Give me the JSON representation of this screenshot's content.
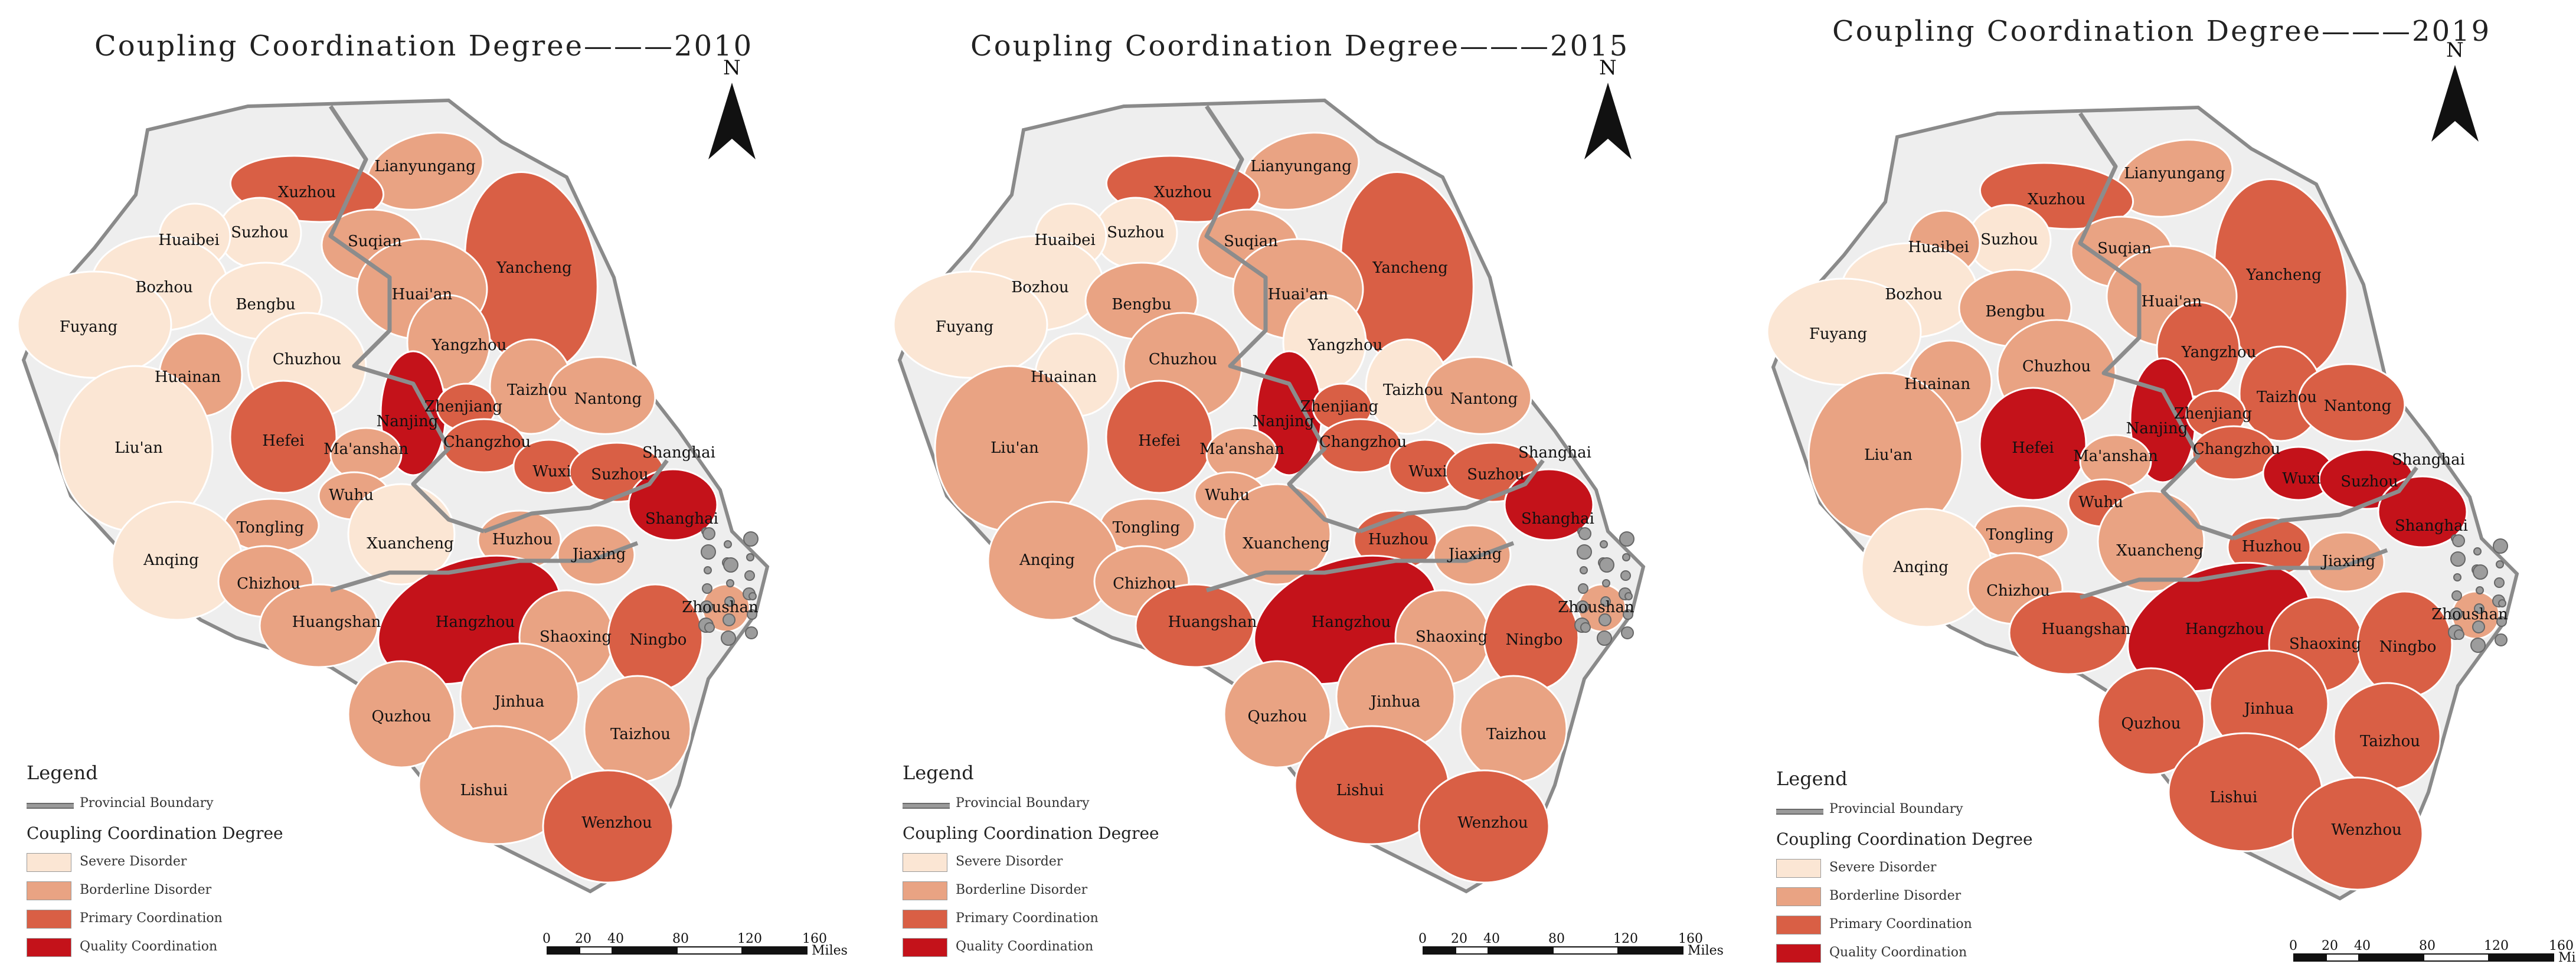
{
  "north_label": "N",
  "legend": {
    "title": "Legend",
    "boundary_label": "Provincial Boundary",
    "degree_title": "Coupling Coordination Degree",
    "classes": [
      {
        "key": "severe",
        "label": "Severe Disorder",
        "color": "#fbe6d4"
      },
      {
        "key": "borderline",
        "label": "Borderline Disorder",
        "color": "#e9a383"
      },
      {
        "key": "primary",
        "label": "Primary Coordination",
        "color": "#d95f45"
      },
      {
        "key": "quality",
        "label": "Quality Coordination",
        "color": "#c4121a"
      }
    ]
  },
  "scale": {
    "ticks": [
      "0",
      "20",
      "40",
      "80",
      "120",
      "160"
    ],
    "unit": "Miles"
  },
  "maps": [
    {
      "title": "Coupling Coordination Degree———2010",
      "cities": {
        "Lianyungang": "borderline",
        "Xuzhou": "primary",
        "Suzhou_n": "severe",
        "Huaibei": "severe",
        "Suqian": "borderline",
        "Yancheng": "primary",
        "Bozhou": "severe",
        "Bengbu": "severe",
        "Huai'an": "borderline",
        "Fuyang": "severe",
        "Huainan": "borderline",
        "Chuzhou": "severe",
        "Yangzhou": "borderline",
        "Taizhou_j": "borderline",
        "Nantong": "borderline",
        "Nanjing": "quality",
        "Zhenjiang": "primary",
        "Hefei": "primary",
        "Ma'anshan": "borderline",
        "Changzhou": "primary",
        "Wuxi": "primary",
        "Suzhou_s": "primary",
        "Shanghai": "quality",
        "Liu'an": "severe",
        "Wuhu": "borderline",
        "Tongling": "borderline",
        "Xuancheng": "severe",
        "Huzhou": "borderline",
        "Jiaxing": "borderline",
        "Anqing": "severe",
        "Chizhou": "borderline",
        "Huangshan": "borderline",
        "Hangzhou": "quality",
        "Shaoxing": "borderline",
        "Ningbo": "primary",
        "Zhoushan": "borderline",
        "Quzhou": "borderline",
        "Jinhua": "borderline",
        "Taizhou_z": "borderline",
        "Lishui": "borderline",
        "Wenzhou": "primary"
      }
    },
    {
      "title": "Coupling Coordination Degree———2015",
      "cities": {
        "Lianyungang": "borderline",
        "Xuzhou": "primary",
        "Suzhou_n": "severe",
        "Huaibei": "severe",
        "Suqian": "borderline",
        "Yancheng": "primary",
        "Bozhou": "severe",
        "Bengbu": "borderline",
        "Huai'an": "borderline",
        "Fuyang": "severe",
        "Huainan": "severe",
        "Chuzhou": "borderline",
        "Yangzhou": "severe",
        "Taizhou_j": "severe",
        "Nantong": "borderline",
        "Nanjing": "quality",
        "Zhenjiang": "primary",
        "Hefei": "primary",
        "Ma'anshan": "borderline",
        "Changzhou": "primary",
        "Wuxi": "primary",
        "Suzhou_s": "primary",
        "Shanghai": "quality",
        "Liu'an": "borderline",
        "Wuhu": "borderline",
        "Tongling": "borderline",
        "Xuancheng": "borderline",
        "Huzhou": "primary",
        "Jiaxing": "borderline",
        "Anqing": "borderline",
        "Chizhou": "borderline",
        "Huangshan": "primary",
        "Hangzhou": "quality",
        "Shaoxing": "borderline",
        "Ningbo": "primary",
        "Zhoushan": "borderline",
        "Quzhou": "borderline",
        "Jinhua": "borderline",
        "Taizhou_z": "borderline",
        "Lishui": "primary",
        "Wenzhou": "primary"
      }
    },
    {
      "title": "Coupling Coordination Degree———2019",
      "cities": {
        "Lianyungang": "borderline",
        "Xuzhou": "primary",
        "Suzhou_n": "severe",
        "Huaibei": "borderline",
        "Suqian": "borderline",
        "Yancheng": "primary",
        "Bozhou": "severe",
        "Bengbu": "borderline",
        "Huai'an": "borderline",
        "Fuyang": "severe",
        "Huainan": "borderline",
        "Chuzhou": "borderline",
        "Yangzhou": "primary",
        "Taizhou_j": "primary",
        "Nantong": "primary",
        "Nanjing": "quality",
        "Zhenjiang": "primary",
        "Hefei": "quality",
        "Ma'anshan": "borderline",
        "Changzhou": "primary",
        "Wuxi": "quality",
        "Suzhou_s": "quality",
        "Shanghai": "quality",
        "Liu'an": "borderline",
        "Wuhu": "primary",
        "Tongling": "borderline",
        "Xuancheng": "borderline",
        "Huzhou": "primary",
        "Jiaxing": "borderline",
        "Anqing": "severe",
        "Chizhou": "borderline",
        "Huangshan": "primary",
        "Hangzhou": "quality",
        "Shaoxing": "primary",
        "Ningbo": "primary",
        "Zhoushan": "borderline",
        "Quzhou": "primary",
        "Jinhua": "primary",
        "Taizhou_z": "primary",
        "Lishui": "primary",
        "Wenzhou": "primary"
      }
    }
  ],
  "city_labels": {
    "Lianyungang": "Lianyungang",
    "Xuzhou": "Xuzhou",
    "Suzhou_n": "Suzhou",
    "Huaibei": "Huaibei",
    "Suqian": "Suqian",
    "Yancheng": "Yancheng",
    "Bozhou": "Bozhou",
    "Bengbu": "Bengbu",
    "Huai'an": "Huai'an",
    "Fuyang": "Fuyang",
    "Huainan": "Huainan",
    "Chuzhou": "Chuzhou",
    "Yangzhou": "Yangzhou",
    "Taizhou_j": "Taizhou",
    "Nantong": "Nantong",
    "Nanjing": "Nanjing",
    "Zhenjiang": "Zhenjiang",
    "Hefei": "Hefei",
    "Ma'anshan": "Ma'anshan",
    "Changzhou": "Changzhou",
    "Wuxi": "Wuxi",
    "Suzhou_s": "Suzhou",
    "Shanghai": "Shanghai",
    "Liu'an": "Liu'an",
    "Wuhu": "Wuhu",
    "Tongling": "Tongling",
    "Xuancheng": "Xuancheng",
    "Huzhou": "Huzhou",
    "Jiaxing": "Jiaxing",
    "Anqing": "Anqing",
    "Chizhou": "Chizhou",
    "Huangshan": "Huangshan",
    "Hangzhou": "Hangzhou",
    "Shaoxing": "Shaoxing",
    "Ningbo": "Ningbo",
    "Zhoushan": "Zhoushan",
    "Quzhou": "Quzhou",
    "Jinhua": "Jinhua",
    "Taizhou_z": "Taizhou",
    "Lishui": "Lishui",
    "Wenzhou": "Wenzhou"
  },
  "extra_labels": {
    "Shangha_top": "Shanghai"
  }
}
